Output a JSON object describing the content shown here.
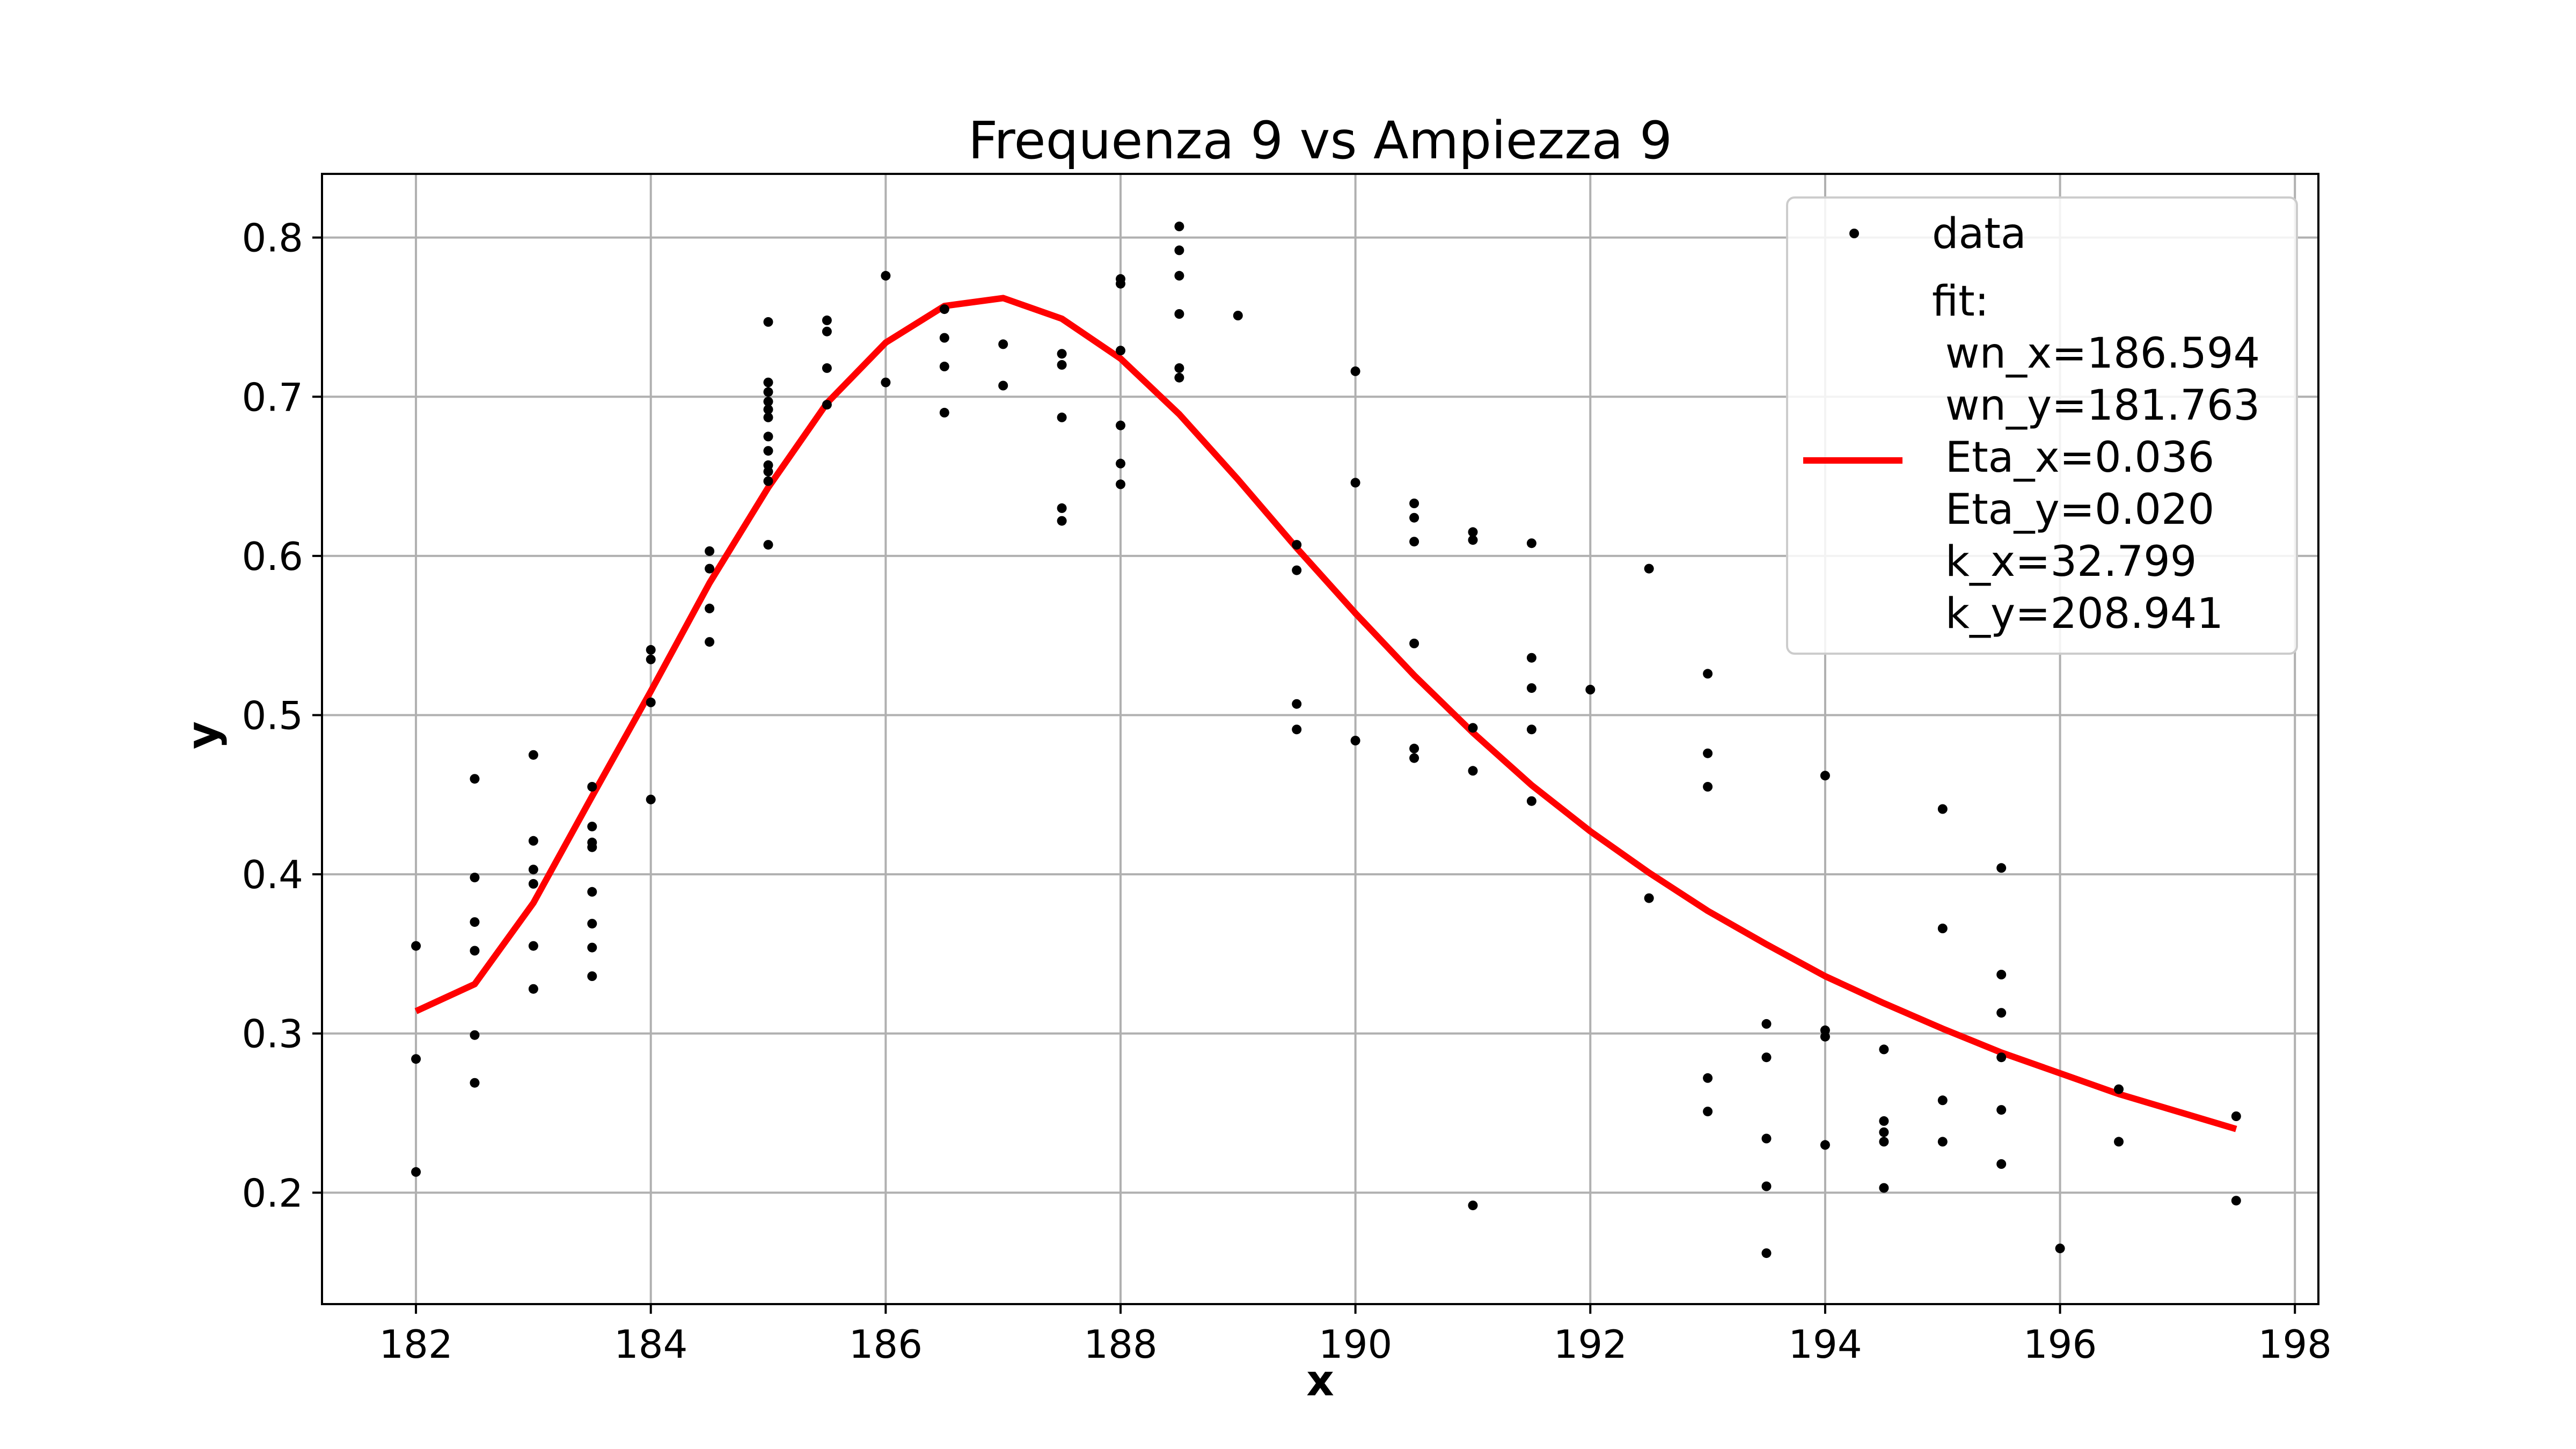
{
  "chart_data": {
    "type": "scatter",
    "title": "Frequenza 9 vs Ampiezza 9",
    "xlabel": "x",
    "ylabel": "y",
    "xlim": [
      181.2,
      198.2
    ],
    "ylim": [
      0.13,
      0.84
    ],
    "xticks": [
      182,
      184,
      186,
      188,
      190,
      192,
      194,
      196,
      198
    ],
    "xtick_labels": [
      "182",
      "184",
      "186",
      "188",
      "190",
      "192",
      "194",
      "196",
      "198"
    ],
    "yticks": [
      0.2,
      0.3,
      0.4,
      0.5,
      0.6,
      0.7,
      0.8
    ],
    "ytick_labels": [
      "0.2",
      "0.3",
      "0.4",
      "0.5",
      "0.6",
      "0.7",
      "0.8"
    ],
    "grid": true,
    "legend_position": "top-right",
    "series": [
      {
        "name": "data",
        "kind": "scatter",
        "color": "#000000",
        "points": [
          [
            182,
            0.355
          ],
          [
            182,
            0.284
          ],
          [
            182,
            0.213
          ],
          [
            182.5,
            0.46
          ],
          [
            182.5,
            0.398
          ],
          [
            182.5,
            0.37
          ],
          [
            182.5,
            0.352
          ],
          [
            182.5,
            0.299
          ],
          [
            182.5,
            0.269
          ],
          [
            183,
            0.475
          ],
          [
            183,
            0.421
          ],
          [
            183,
            0.403
          ],
          [
            183,
            0.394
          ],
          [
            183,
            0.355
          ],
          [
            183,
            0.328
          ],
          [
            183.5,
            0.455
          ],
          [
            183.5,
            0.43
          ],
          [
            183.5,
            0.42
          ],
          [
            183.5,
            0.417
          ],
          [
            183.5,
            0.389
          ],
          [
            183.5,
            0.369
          ],
          [
            183.5,
            0.354
          ],
          [
            183.5,
            0.336
          ],
          [
            184,
            0.541
          ],
          [
            184,
            0.535
          ],
          [
            184,
            0.508
          ],
          [
            184,
            0.447
          ],
          [
            184.5,
            0.603
          ],
          [
            184.5,
            0.592
          ],
          [
            184.5,
            0.567
          ],
          [
            184.5,
            0.546
          ],
          [
            185,
            0.747
          ],
          [
            185,
            0.709
          ],
          [
            185,
            0.703
          ],
          [
            185,
            0.697
          ],
          [
            185,
            0.692
          ],
          [
            185,
            0.687
          ],
          [
            185,
            0.675
          ],
          [
            185,
            0.666
          ],
          [
            185,
            0.657
          ],
          [
            185,
            0.653
          ],
          [
            185,
            0.647
          ],
          [
            185,
            0.607
          ],
          [
            185.5,
            0.748
          ],
          [
            185.5,
            0.741
          ],
          [
            185.5,
            0.718
          ],
          [
            185.5,
            0.695
          ],
          [
            186,
            0.776
          ],
          [
            186,
            0.709
          ],
          [
            186.5,
            0.755
          ],
          [
            186.5,
            0.737
          ],
          [
            186.5,
            0.719
          ],
          [
            186.5,
            0.69
          ],
          [
            187,
            0.733
          ],
          [
            187,
            0.707
          ],
          [
            187.5,
            0.727
          ],
          [
            187.5,
            0.72
          ],
          [
            187.5,
            0.687
          ],
          [
            187.5,
            0.63
          ],
          [
            187.5,
            0.622
          ],
          [
            188,
            0.774
          ],
          [
            188,
            0.771
          ],
          [
            188,
            0.729
          ],
          [
            188,
            0.682
          ],
          [
            188,
            0.658
          ],
          [
            188,
            0.645
          ],
          [
            188.5,
            0.807
          ],
          [
            188.5,
            0.792
          ],
          [
            188.5,
            0.776
          ],
          [
            188.5,
            0.752
          ],
          [
            188.5,
            0.718
          ],
          [
            188.5,
            0.712
          ],
          [
            189,
            0.751
          ],
          [
            189.5,
            0.607
          ],
          [
            189.5,
            0.591
          ],
          [
            189.5,
            0.507
          ],
          [
            189.5,
            0.491
          ],
          [
            190,
            0.716
          ],
          [
            190,
            0.646
          ],
          [
            190,
            0.484
          ],
          [
            190.5,
            0.633
          ],
          [
            190.5,
            0.624
          ],
          [
            190.5,
            0.609
          ],
          [
            190.5,
            0.545
          ],
          [
            190.5,
            0.479
          ],
          [
            190.5,
            0.473
          ],
          [
            191,
            0.615
          ],
          [
            191,
            0.61
          ],
          [
            191,
            0.492
          ],
          [
            191,
            0.465
          ],
          [
            191,
            0.192
          ],
          [
            191.5,
            0.608
          ],
          [
            191.5,
            0.536
          ],
          [
            191.5,
            0.517
          ],
          [
            191.5,
            0.491
          ],
          [
            191.5,
            0.446
          ],
          [
            192,
            0.516
          ],
          [
            192.5,
            0.592
          ],
          [
            192.5,
            0.385
          ],
          [
            193,
            0.526
          ],
          [
            193,
            0.476
          ],
          [
            193,
            0.455
          ],
          [
            193,
            0.272
          ],
          [
            193,
            0.251
          ],
          [
            193.5,
            0.306
          ],
          [
            193.5,
            0.285
          ],
          [
            193.5,
            0.234
          ],
          [
            193.5,
            0.204
          ],
          [
            193.5,
            0.162
          ],
          [
            194,
            0.462
          ],
          [
            194,
            0.302
          ],
          [
            194,
            0.298
          ],
          [
            194,
            0.23
          ],
          [
            194.5,
            0.29
          ],
          [
            194.5,
            0.245
          ],
          [
            194.5,
            0.238
          ],
          [
            194.5,
            0.232
          ],
          [
            194.5,
            0.203
          ],
          [
            195,
            0.441
          ],
          [
            195,
            0.366
          ],
          [
            195,
            0.258
          ],
          [
            195,
            0.232
          ],
          [
            195.5,
            0.404
          ],
          [
            195.5,
            0.337
          ],
          [
            195.5,
            0.313
          ],
          [
            195.5,
            0.285
          ],
          [
            195.5,
            0.252
          ],
          [
            195.5,
            0.218
          ],
          [
            196,
            0.165
          ],
          [
            196.5,
            0.265
          ],
          [
            196.5,
            0.232
          ],
          [
            197.5,
            0.248
          ],
          [
            197.5,
            0.195
          ]
        ]
      },
      {
        "name": "fit:\n wn_x=186.594\n wn_y=181.763\n Eta_x=0.036\n Eta_y=0.020\n k_x=32.799\n k_y=208.941",
        "kind": "line",
        "color": "#ff0000",
        "points": [
          [
            182,
            0.314
          ],
          [
            182.5,
            0.331
          ],
          [
            183,
            0.382
          ],
          [
            183.5,
            0.449
          ],
          [
            184,
            0.515
          ],
          [
            184.5,
            0.583
          ],
          [
            185,
            0.643
          ],
          [
            185.5,
            0.696
          ],
          [
            186,
            0.734
          ],
          [
            186.5,
            0.757
          ],
          [
            187,
            0.762
          ],
          [
            187.5,
            0.749
          ],
          [
            188,
            0.724
          ],
          [
            188.5,
            0.689
          ],
          [
            189,
            0.648
          ],
          [
            189.5,
            0.605
          ],
          [
            190,
            0.564
          ],
          [
            190.5,
            0.525
          ],
          [
            191,
            0.489
          ],
          [
            191.5,
            0.456
          ],
          [
            192,
            0.427
          ],
          [
            192.5,
            0.401
          ],
          [
            193,
            0.377
          ],
          [
            193.5,
            0.356
          ],
          [
            194,
            0.336
          ],
          [
            194.5,
            0.319
          ],
          [
            195,
            0.303
          ],
          [
            195.5,
            0.288
          ],
          [
            196,
            0.275
          ],
          [
            196.5,
            0.262
          ],
          [
            197,
            0.251
          ],
          [
            197.5,
            0.24
          ]
        ]
      }
    ],
    "legend": {
      "data_label": "data",
      "fit_lines": [
        "fit:",
        " wn_x=186.594",
        " wn_y=181.763",
        " Eta_x=0.036",
        " Eta_y=0.020",
        " k_x=32.799",
        " k_y=208.941"
      ]
    }
  }
}
